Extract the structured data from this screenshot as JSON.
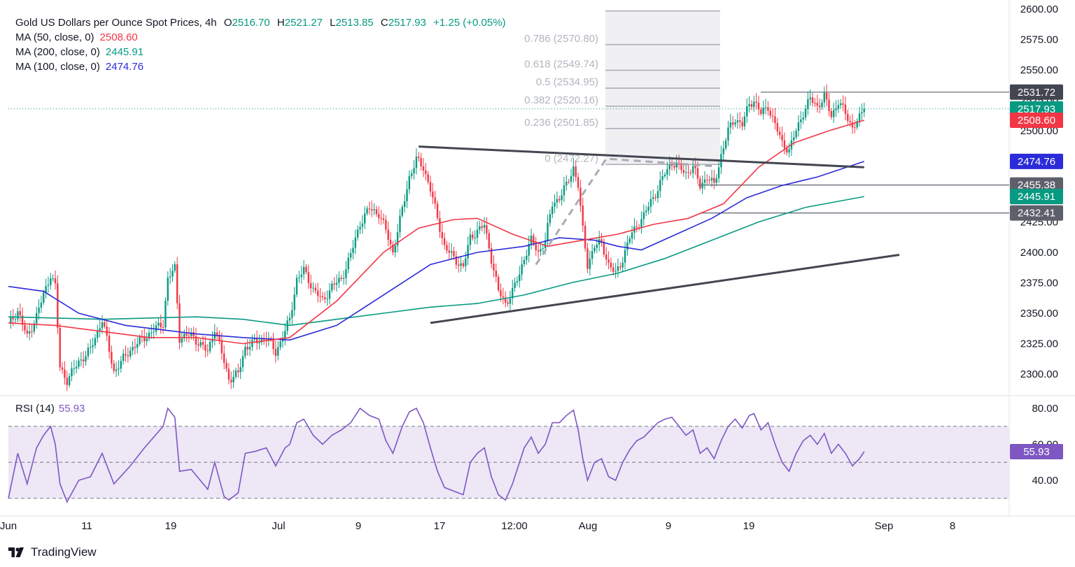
{
  "legend": {
    "symbol": "Gold US Dollars per Ounce Spot Prices, 4h",
    "o_key": "O",
    "o": "2516.70",
    "h_key": "H",
    "h": "2521.27",
    "l_key": "L",
    "l": "2513.85",
    "c_key": "C",
    "c": "2517.93",
    "change": "+1.25 (+0.05%)",
    "ma50_label": "MA (50, close, 0)",
    "ma50_value": "2508.60",
    "ma200_label": "MA (200, close, 0)",
    "ma200_value": "2445.91",
    "ma100_label": "MA (100, close, 0)",
    "ma100_value": "2474.76"
  },
  "rsi_legend": {
    "label": "RSI (14)",
    "value": "55.93"
  },
  "brand": {
    "name": "TradingView"
  },
  "colors": {
    "up": "#089981",
    "down": "#f23645",
    "ma50": "#f23645",
    "ma100": "#2b2bd9",
    "ma200": "#089981",
    "rsi": "#7e57c2",
    "rsi_band": "#ede7f6",
    "trendline": "#434651",
    "fib_zone": "#f0f0f3",
    "fib_text": "#b2b5be"
  },
  "chart_data": [
    {
      "type": "candlestick",
      "title": "Gold US Dollars per Ounce Spot Prices, 4h",
      "ylim": [
        2285,
        2600
      ],
      "y_ticks": [
        2300.0,
        2325.0,
        2350.0,
        2375.0,
        2400.0,
        2425.0,
        2450.0,
        2475.0,
        2500.0,
        2525.0,
        2550.0,
        2575.0,
        2600.0
      ],
      "x_ticks": [
        "Jun",
        "11",
        "19",
        "Jul",
        "9",
        "17",
        "12:00",
        "Aug",
        "9",
        "19",
        "Sep",
        "8"
      ],
      "price_path": [
        [
          0,
          2340
        ],
        [
          4,
          2352
        ],
        [
          8,
          2330
        ],
        [
          12,
          2348
        ],
        [
          15,
          2365
        ],
        [
          18,
          2382
        ],
        [
          20,
          2372
        ],
        [
          22,
          2305
        ],
        [
          25,
          2295
        ],
        [
          30,
          2310
        ],
        [
          35,
          2320
        ],
        [
          40,
          2345
        ],
        [
          45,
          2302
        ],
        [
          52,
          2320
        ],
        [
          58,
          2330
        ],
        [
          66,
          2342
        ],
        [
          68,
          2378
        ],
        [
          71,
          2387
        ],
        [
          73,
          2330
        ],
        [
          78,
          2332
        ],
        [
          85,
          2318
        ],
        [
          88,
          2338
        ],
        [
          92,
          2310
        ],
        [
          94,
          2296
        ],
        [
          98,
          2300
        ],
        [
          101,
          2322
        ],
        [
          105,
          2326
        ],
        [
          110,
          2330
        ],
        [
          114,
          2318
        ],
        [
          118,
          2335
        ],
        [
          120,
          2345
        ],
        [
          123,
          2378
        ],
        [
          126,
          2385
        ],
        [
          130,
          2370
        ],
        [
          134,
          2360
        ],
        [
          138,
          2372
        ],
        [
          142,
          2378
        ],
        [
          146,
          2398
        ],
        [
          150,
          2424
        ],
        [
          154,
          2436
        ],
        [
          158,
          2432
        ],
        [
          161,
          2418
        ],
        [
          164,
          2400
        ],
        [
          168,
          2435
        ],
        [
          171,
          2462
        ],
        [
          174,
          2476
        ],
        [
          177,
          2470
        ],
        [
          180,
          2452
        ],
        [
          183,
          2428
        ],
        [
          186,
          2405
        ],
        [
          190,
          2395
        ],
        [
          194,
          2388
        ],
        [
          197,
          2412
        ],
        [
          200,
          2418
        ],
        [
          203,
          2422
        ],
        [
          206,
          2395
        ],
        [
          209,
          2368
        ],
        [
          212,
          2358
        ],
        [
          215,
          2368
        ],
        [
          218,
          2382
        ],
        [
          220,
          2396
        ],
        [
          223,
          2410
        ],
        [
          226,
          2400
        ],
        [
          229,
          2410
        ],
        [
          232,
          2440
        ],
        [
          235,
          2445
        ],
        [
          238,
          2455
        ],
        [
          241,
          2470
        ],
        [
          243,
          2455
        ],
        [
          245,
          2418
        ],
        [
          247,
          2390
        ],
        [
          250,
          2405
        ],
        [
          253,
          2408
        ],
        [
          256,
          2390
        ],
        [
          259,
          2382
        ],
        [
          262,
          2395
        ],
        [
          265,
          2412
        ],
        [
          268,
          2422
        ],
        [
          271,
          2430
        ],
        [
          274,
          2442
        ],
        [
          277,
          2452
        ],
        [
          280,
          2465
        ],
        [
          283,
          2474
        ],
        [
          286,
          2470
        ],
        [
          289,
          2465
        ],
        [
          292,
          2470
        ],
        [
          295,
          2455
        ],
        [
          298,
          2462
        ],
        [
          301,
          2455
        ],
        [
          304,
          2480
        ],
        [
          307,
          2500
        ],
        [
          310,
          2510
        ],
        [
          313,
          2505
        ],
        [
          316,
          2522
        ],
        [
          318,
          2525
        ],
        [
          321,
          2514
        ],
        [
          324,
          2520
        ],
        [
          327,
          2505
        ],
        [
          330,
          2490
        ],
        [
          333,
          2484
        ],
        [
          336,
          2500
        ],
        [
          339,
          2515
        ],
        [
          342,
          2526
        ],
        [
          345,
          2520
        ],
        [
          348,
          2528
        ],
        [
          351,
          2512
        ],
        [
          354,
          2524
        ],
        [
          357,
          2514
        ],
        [
          360,
          2503
        ],
        [
          363,
          2510
        ],
        [
          365,
          2517.93
        ]
      ],
      "ma50": [
        [
          0,
          2342
        ],
        [
          20,
          2340
        ],
        [
          40,
          2335
        ],
        [
          60,
          2330
        ],
        [
          80,
          2330
        ],
        [
          100,
          2325
        ],
        [
          120,
          2330
        ],
        [
          140,
          2360
        ],
        [
          160,
          2400
        ],
        [
          175,
          2420
        ],
        [
          190,
          2427
        ],
        [
          200,
          2428
        ],
        [
          215,
          2415
        ],
        [
          230,
          2405
        ],
        [
          245,
          2410
        ],
        [
          260,
          2415
        ],
        [
          275,
          2423
        ],
        [
          290,
          2428
        ],
        [
          305,
          2440
        ],
        [
          320,
          2470
        ],
        [
          335,
          2490
        ],
        [
          350,
          2500
        ],
        [
          365,
          2508.6
        ]
      ],
      "ma100": [
        [
          0,
          2372
        ],
        [
          15,
          2368
        ],
        [
          30,
          2350
        ],
        [
          50,
          2340
        ],
        [
          80,
          2333
        ],
        [
          100,
          2330
        ],
        [
          120,
          2328
        ],
        [
          140,
          2340
        ],
        [
          160,
          2365
        ],
        [
          180,
          2390
        ],
        [
          200,
          2400
        ],
        [
          220,
          2405
        ],
        [
          235,
          2412
        ],
        [
          250,
          2410
        ],
        [
          260,
          2405
        ],
        [
          270,
          2402
        ],
        [
          285,
          2415
        ],
        [
          300,
          2428
        ],
        [
          315,
          2445
        ],
        [
          330,
          2455
        ],
        [
          345,
          2462
        ],
        [
          365,
          2474.76
        ]
      ],
      "ma200": [
        [
          0,
          2347
        ],
        [
          40,
          2345
        ],
        [
          80,
          2347
        ],
        [
          100,
          2345
        ],
        [
          120,
          2340
        ],
        [
          140,
          2345
        ],
        [
          160,
          2350
        ],
        [
          180,
          2355
        ],
        [
          200,
          2358
        ],
        [
          220,
          2365
        ],
        [
          240,
          2375
        ],
        [
          260,
          2383
        ],
        [
          280,
          2395
        ],
        [
          300,
          2410
        ],
        [
          320,
          2425
        ],
        [
          340,
          2437
        ],
        [
          365,
          2445.91
        ]
      ],
      "horizontal_levels": [
        2531.72,
        2455.38,
        2432.41
      ],
      "price_labels": [
        "2531.72",
        "2517.93",
        "2508.60",
        "2474.76",
        "2455.38",
        "2445.91",
        "2432.41"
      ],
      "fib_labels": [
        "0.786 (2570.80)",
        "0.618 (2549.74)",
        "0.5 (2534.95)",
        "0.382 (2520.16)",
        "0.236 (2501.85)",
        "0 (2472.27)"
      ],
      "fib_levels": [
        2570.8,
        2549.74,
        2534.95,
        2520.16,
        2501.85,
        2472.27
      ],
      "fib_extra_level": 2598.5,
      "trendlines": [
        {
          "from": [
            175,
            2487
          ],
          "to": [
            365,
            2470
          ]
        },
        {
          "from": [
            180,
            2342
          ],
          "to": [
            380,
            2398
          ]
        }
      ],
      "dashed_projection": [
        [
          225,
          2390
        ],
        [
          255,
          2477
        ],
        [
          300,
          2471
        ]
      ]
    },
    {
      "type": "line",
      "title": "RSI (14)",
      "ylim": [
        25,
        85
      ],
      "y_ticks": [
        40.0,
        60.0,
        80.0
      ],
      "band": [
        30,
        70
      ],
      "midline": 50,
      "last_value": 55.93,
      "points": [
        [
          0,
          30
        ],
        [
          4,
          55
        ],
        [
          8,
          38
        ],
        [
          12,
          58
        ],
        [
          15,
          65
        ],
        [
          18,
          70
        ],
        [
          20,
          60
        ],
        [
          22,
          38
        ],
        [
          25,
          28
        ],
        [
          30,
          40
        ],
        [
          35,
          42
        ],
        [
          40,
          55
        ],
        [
          45,
          38
        ],
        [
          52,
          48
        ],
        [
          58,
          58
        ],
        [
          66,
          70
        ],
        [
          68,
          80
        ],
        [
          71,
          75
        ],
        [
          73,
          45
        ],
        [
          78,
          46
        ],
        [
          85,
          35
        ],
        [
          88,
          50
        ],
        [
          92,
          31
        ],
        [
          94,
          29
        ],
        [
          98,
          33
        ],
        [
          101,
          55
        ],
        [
          105,
          56
        ],
        [
          110,
          58
        ],
        [
          114,
          48
        ],
        [
          118,
          58
        ],
        [
          120,
          60
        ],
        [
          123,
          72
        ],
        [
          126,
          74
        ],
        [
          130,
          65
        ],
        [
          134,
          60
        ],
        [
          138,
          65
        ],
        [
          142,
          68
        ],
        [
          146,
          72
        ],
        [
          150,
          80
        ],
        [
          154,
          76
        ],
        [
          158,
          74
        ],
        [
          161,
          62
        ],
        [
          164,
          55
        ],
        [
          168,
          70
        ],
        [
          171,
          78
        ],
        [
          174,
          80
        ],
        [
          177,
          72
        ],
        [
          180,
          58
        ],
        [
          183,
          45
        ],
        [
          186,
          36
        ],
        [
          190,
          34
        ],
        [
          194,
          32
        ],
        [
          197,
          50
        ],
        [
          200,
          55
        ],
        [
          203,
          58
        ],
        [
          206,
          42
        ],
        [
          209,
          32
        ],
        [
          212,
          29
        ],
        [
          215,
          38
        ],
        [
          218,
          50
        ],
        [
          220,
          58
        ],
        [
          223,
          64
        ],
        [
          226,
          55
        ],
        [
          229,
          60
        ],
        [
          232,
          72
        ],
        [
          235,
          72
        ],
        [
          238,
          76
        ],
        [
          241,
          79
        ],
        [
          243,
          68
        ],
        [
          245,
          52
        ],
        [
          247,
          40
        ],
        [
          250,
          50
        ],
        [
          253,
          52
        ],
        [
          256,
          42
        ],
        [
          259,
          40
        ],
        [
          262,
          50
        ],
        [
          265,
          57
        ],
        [
          268,
          62
        ],
        [
          271,
          64
        ],
        [
          274,
          68
        ],
        [
          277,
          72
        ],
        [
          280,
          74
        ],
        [
          283,
          75
        ],
        [
          286,
          70
        ],
        [
          289,
          65
        ],
        [
          292,
          68
        ],
        [
          295,
          55
        ],
        [
          298,
          58
        ],
        [
          301,
          52
        ],
        [
          304,
          62
        ],
        [
          307,
          70
        ],
        [
          310,
          74
        ],
        [
          313,
          69
        ],
        [
          316,
          76
        ],
        [
          318,
          77
        ],
        [
          321,
          68
        ],
        [
          324,
          72
        ],
        [
          327,
          60
        ],
        [
          330,
          50
        ],
        [
          333,
          45
        ],
        [
          336,
          55
        ],
        [
          339,
          62
        ],
        [
          342,
          65
        ],
        [
          345,
          60
        ],
        [
          348,
          66
        ],
        [
          351,
          55
        ],
        [
          354,
          60
        ],
        [
          357,
          55
        ],
        [
          360,
          48
        ],
        [
          363,
          52
        ],
        [
          365,
          55.93
        ]
      ]
    }
  ]
}
